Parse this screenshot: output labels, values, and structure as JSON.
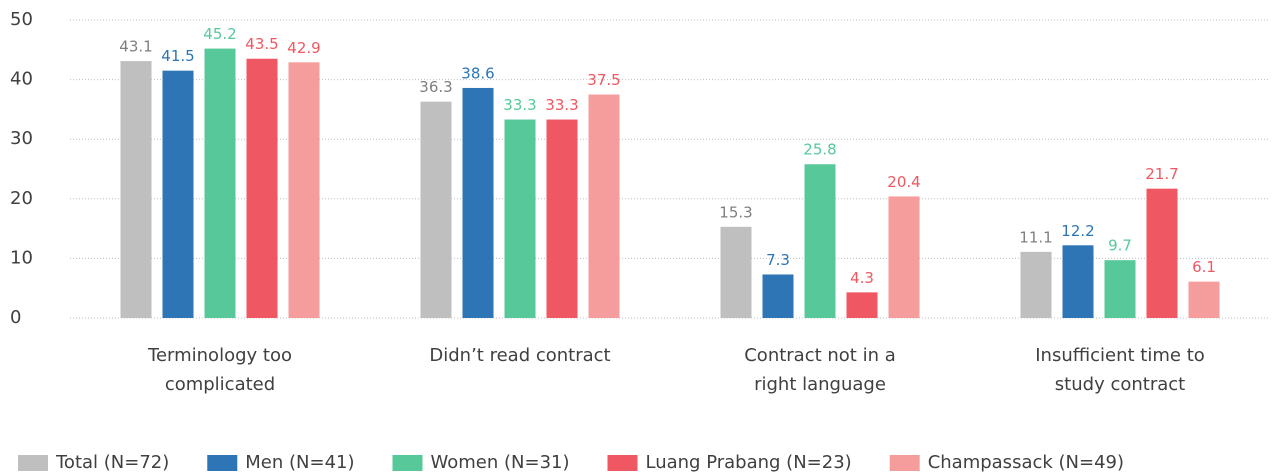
{
  "chart_data": {
    "type": "bar",
    "categories": [
      [
        "Terminology too",
        "complicated"
      ],
      [
        "Didn’t read contract"
      ],
      [
        "Contract not in a",
        "right language"
      ],
      [
        "Insufficient time to",
        "study contract"
      ]
    ],
    "series": [
      {
        "name": "Total (N=72)",
        "color": "#bfbfbf",
        "label_color": "#7f7f7f",
        "values": [
          43.1,
          36.3,
          15.3,
          11.1
        ]
      },
      {
        "name": "Men (N=41)",
        "color": "#2e75b6",
        "label_color": "#2e75b6",
        "values": [
          41.5,
          38.6,
          7.3,
          12.2
        ]
      },
      {
        "name": "Women (N=31)",
        "color": "#57c89a",
        "label_color": "#57c89a",
        "values": [
          45.2,
          33.3,
          25.8,
          9.7
        ]
      },
      {
        "name": "Luang Prabang (N=23)",
        "color": "#ef5762",
        "label_color": "#ef5762",
        "values": [
          43.5,
          33.3,
          4.3,
          21.7
        ]
      },
      {
        "name": "Champassack (N=49)",
        "color": "#f59d9c",
        "label_color": "#ef5762",
        "values": [
          42.9,
          37.5,
          20.4,
          6.1
        ]
      }
    ],
    "ylim": [
      0,
      50
    ],
    "yticks": [
      0,
      10,
      20,
      30,
      40,
      50
    ],
    "grid": true,
    "legend": "bottom"
  }
}
